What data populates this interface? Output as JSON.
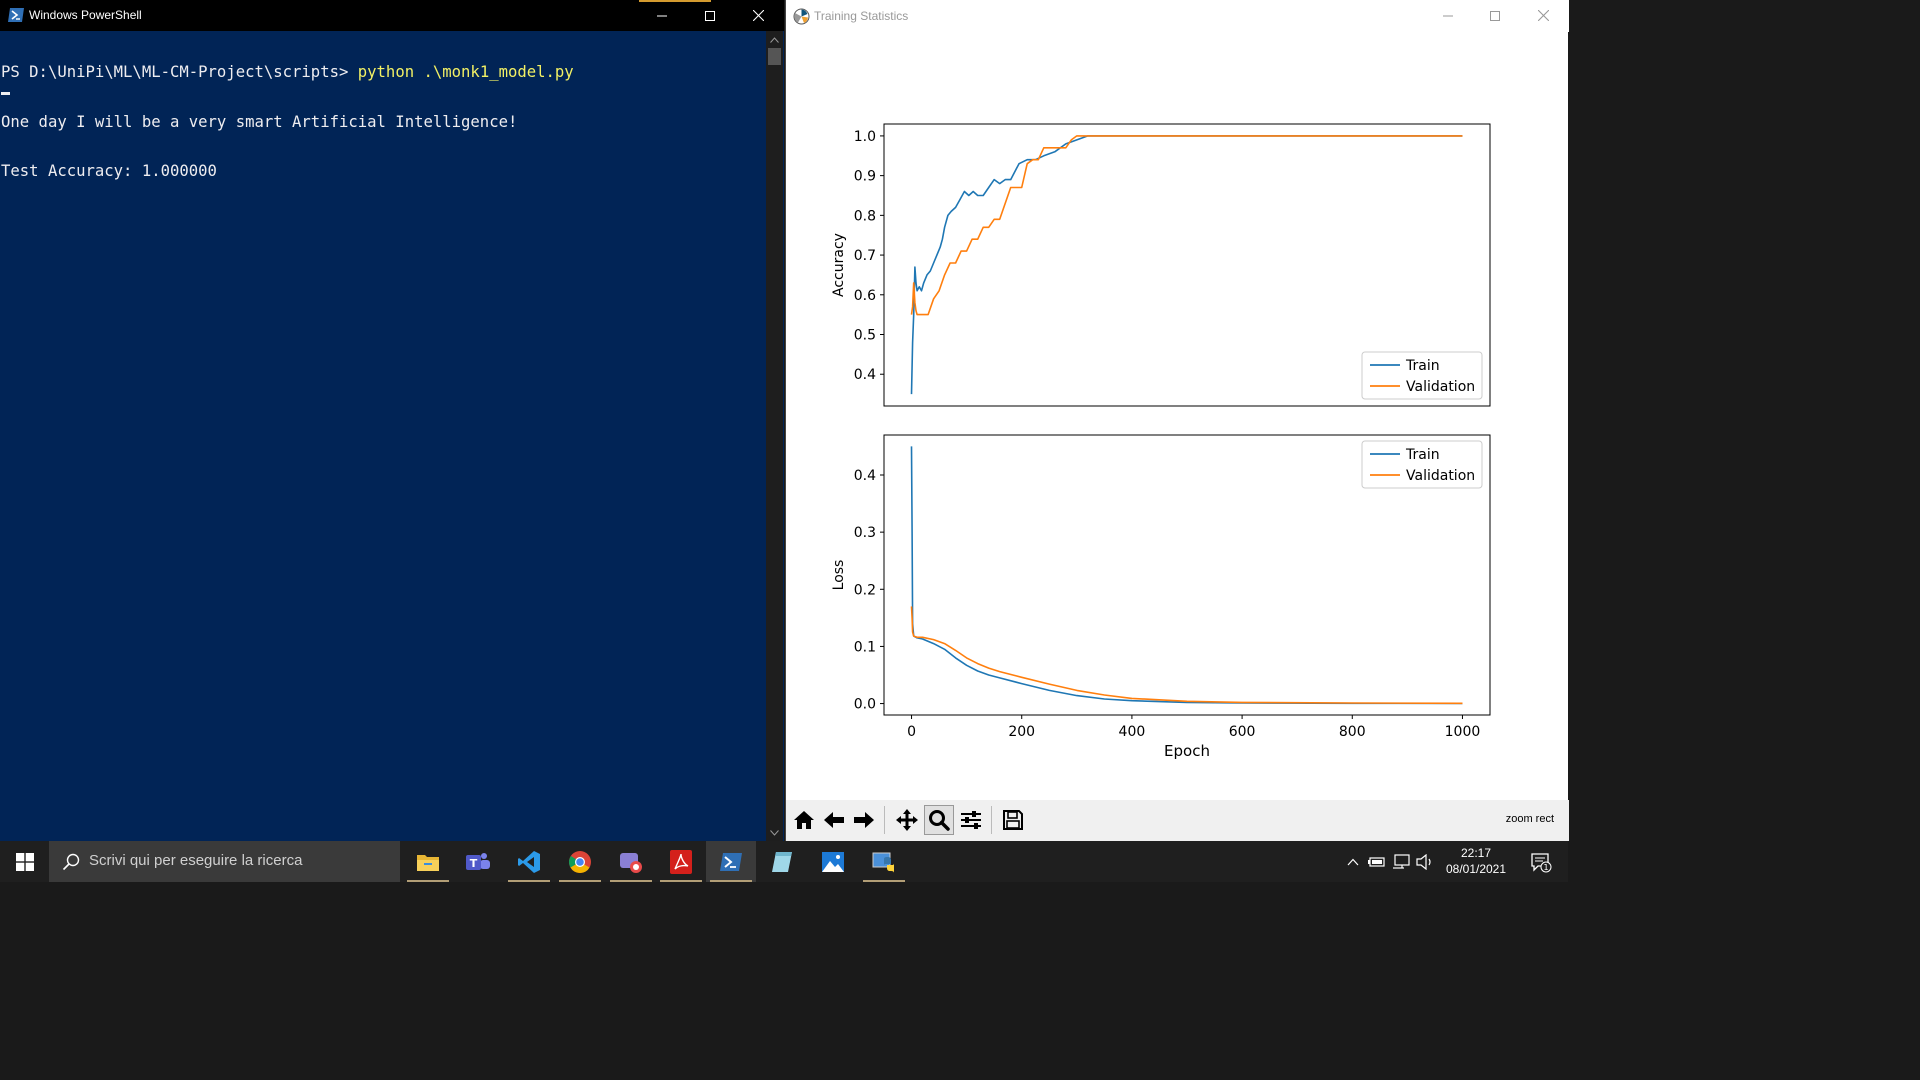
{
  "powershell": {
    "title": "Windows PowerShell",
    "prompt": "PS D:\\UniPi\\ML\\ML-CM-Project\\scripts> ",
    "command": "python .\\monk1_model.py",
    "output_line1": "One day I will be a very smart Artificial Intelligence!",
    "output_line2": "Test Accuracy: 1.000000"
  },
  "plot_window": {
    "title": "Training Statistics",
    "status": "zoom rect",
    "toolbar": [
      "home-icon",
      "back-arrow-icon",
      "forward-arrow-icon",
      "pan-icon",
      "zoom-icon",
      "configure-subplots-icon",
      "save-icon"
    ]
  },
  "chart_data": [
    {
      "type": "line",
      "xlabel": "",
      "ylabel": "Accuracy",
      "xlim": [
        -50,
        1050
      ],
      "ylim": [
        0.32,
        1.03
      ],
      "yticks": [
        0.4,
        0.5,
        0.6,
        0.7,
        0.8,
        0.9,
        1.0
      ],
      "legend": "lower-right",
      "series": [
        {
          "name": "Train",
          "color": "#1f77b4",
          "x": [
            0,
            2,
            4,
            6,
            8,
            10,
            14,
            18,
            22,
            28,
            34,
            40,
            46,
            52,
            56,
            60,
            66,
            72,
            80,
            88,
            96,
            104,
            112,
            120,
            130,
            140,
            150,
            160,
            170,
            180,
            195,
            210,
            225,
            240,
            260,
            280,
            300,
            320,
            400,
            600,
            800,
            1000
          ],
          "y": [
            0.35,
            0.48,
            0.55,
            0.67,
            0.63,
            0.61,
            0.62,
            0.61,
            0.63,
            0.65,
            0.66,
            0.68,
            0.7,
            0.72,
            0.74,
            0.77,
            0.8,
            0.81,
            0.82,
            0.84,
            0.86,
            0.85,
            0.86,
            0.85,
            0.85,
            0.87,
            0.89,
            0.88,
            0.89,
            0.89,
            0.93,
            0.94,
            0.94,
            0.95,
            0.96,
            0.98,
            0.99,
            1.0,
            1.0,
            1.0,
            1.0,
            1.0
          ]
        },
        {
          "name": "Validation",
          "color": "#ff7f0e",
          "x": [
            0,
            2,
            4,
            6,
            8,
            10,
            20,
            30,
            40,
            50,
            60,
            70,
            80,
            90,
            100,
            110,
            120,
            130,
            140,
            150,
            160,
            170,
            180,
            190,
            200,
            210,
            220,
            230,
            240,
            250,
            260,
            270,
            280,
            290,
            300,
            320,
            400,
            600,
            800,
            1000
          ],
          "y": [
            0.55,
            0.57,
            0.63,
            0.58,
            0.56,
            0.55,
            0.55,
            0.55,
            0.59,
            0.61,
            0.65,
            0.68,
            0.68,
            0.71,
            0.71,
            0.74,
            0.74,
            0.77,
            0.77,
            0.79,
            0.79,
            0.83,
            0.87,
            0.87,
            0.87,
            0.93,
            0.94,
            0.94,
            0.97,
            0.97,
            0.97,
            0.97,
            0.97,
            0.99,
            1.0,
            1.0,
            1.0,
            1.0,
            1.0,
            1.0
          ]
        }
      ]
    },
    {
      "type": "line",
      "xlabel": "Epoch",
      "ylabel": "Loss",
      "xlim": [
        -50,
        1050
      ],
      "ylim": [
        -0.02,
        0.47
      ],
      "xticks": [
        0,
        200,
        400,
        600,
        800,
        1000
      ],
      "yticks": [
        0.0,
        0.1,
        0.2,
        0.3,
        0.4
      ],
      "legend": "upper-right",
      "series": [
        {
          "name": "Train",
          "color": "#1f77b4",
          "x": [
            0,
            1,
            2,
            4,
            10,
            20,
            40,
            60,
            80,
            100,
            120,
            140,
            160,
            200,
            250,
            300,
            350,
            400,
            500,
            600,
            800,
            1000
          ],
          "y": [
            0.45,
            0.3,
            0.14,
            0.118,
            0.115,
            0.113,
            0.105,
            0.095,
            0.08,
            0.067,
            0.057,
            0.05,
            0.045,
            0.035,
            0.023,
            0.014,
            0.008,
            0.005,
            0.002,
            0.001,
            0.0005,
            0.0002
          ]
        },
        {
          "name": "Validation",
          "color": "#ff7f0e",
          "x": [
            0,
            1,
            2,
            4,
            10,
            20,
            40,
            60,
            80,
            100,
            120,
            140,
            160,
            200,
            250,
            300,
            350,
            400,
            500,
            600,
            800,
            1000
          ],
          "y": [
            0.17,
            0.15,
            0.125,
            0.118,
            0.116,
            0.116,
            0.112,
            0.105,
            0.093,
            0.08,
            0.07,
            0.062,
            0.056,
            0.046,
            0.034,
            0.023,
            0.015,
            0.009,
            0.004,
            0.002,
            0.001,
            0.0005
          ]
        }
      ]
    }
  ],
  "taskbar": {
    "search_placeholder": "Scrivi qui per eseguire la ricerca",
    "time": "22:17",
    "date": "08/01/2021",
    "notification_count": "1",
    "apps": [
      "file-explorer-icon",
      "teams-icon",
      "vscode-icon",
      "chrome-icon",
      "snip-icon",
      "acrobat-icon",
      "powershell-icon",
      "notepad-icon",
      "photos-icon",
      "python-icon"
    ]
  }
}
